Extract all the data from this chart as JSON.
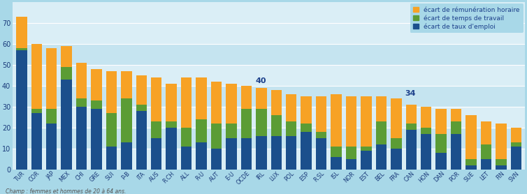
{
  "countries": [
    "TUR",
    "COR",
    "JAP",
    "MEX",
    "CHI",
    "GRE",
    "SUI",
    "P-B",
    "ITA",
    "AUS",
    "R.CH",
    "ALL",
    "R-U",
    "AUT",
    "E-U",
    "OCDE",
    "IRL",
    "LUX",
    "POL",
    "ESP",
    "R.SL",
    "ISL",
    "NOR",
    "EST",
    "BEL",
    "FRA",
    "CAN",
    "HON",
    "DAN",
    "POR",
    "SUE",
    "LET",
    "FIN",
    "SVN"
  ],
  "emploi": [
    57,
    27,
    22,
    43,
    30,
    29,
    11,
    13,
    28,
    15,
    20,
    11,
    13,
    10,
    15,
    15,
    16,
    16,
    16,
    18,
    15,
    6,
    5,
    9,
    12,
    10,
    19,
    17,
    8,
    17,
    2,
    5,
    2,
    11
  ],
  "travail": [
    1,
    2,
    7,
    6,
    4,
    4,
    16,
    21,
    3,
    8,
    3,
    9,
    11,
    12,
    7,
    14,
    13,
    10,
    7,
    4,
    3,
    5,
    6,
    2,
    11,
    5,
    3,
    3,
    9,
    6,
    3,
    7,
    3,
    2
  ],
  "remuneration": [
    15,
    31,
    29,
    10,
    17,
    15,
    20,
    13,
    14,
    21,
    18,
    24,
    20,
    20,
    19,
    11,
    10,
    12,
    13,
    13,
    17,
    25,
    24,
    24,
    12,
    19,
    9,
    10,
    12,
    6,
    21,
    11,
    17,
    7
  ],
  "annotations": [
    {
      "idx": 15,
      "text": "40"
    },
    {
      "idx": 25,
      "text": "34"
    }
  ],
  "color_emploi": "#1b4f8c",
  "color_travail": "#5b9c35",
  "color_remuneration": "#f7a225",
  "legend_labels": [
    "écart de rémunération horaire",
    "écart de temps de travail",
    "écart de taux d'emploi"
  ],
  "bg_color": "#a8d8e8",
  "plot_bg_top": "#daeef6",
  "plot_bg_bottom": "#c5e4f0",
  "annotation_color": "#1b3f8a",
  "footnote": "Champ : femmes et hommes de 20 à 64 ans.",
  "ylim": [
    0,
    80
  ],
  "yticks": [
    0,
    10,
    20,
    30,
    40,
    50,
    60,
    70
  ]
}
